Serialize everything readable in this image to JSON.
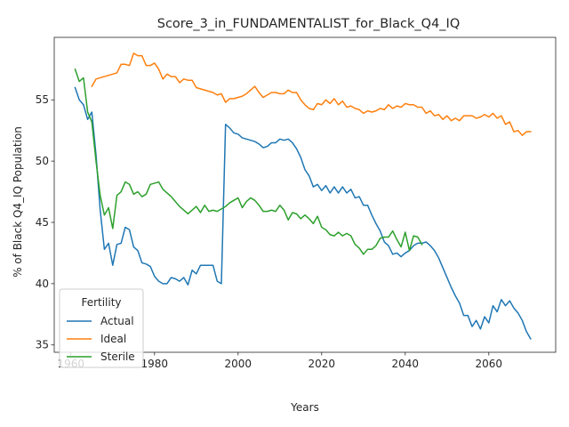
{
  "chart_data": {
    "type": "line",
    "title": "Score_3_in_FUNDAMENTALIST_for_Black_Q4_IQ",
    "xlabel": "Years",
    "ylabel": "% of Black Q4_IQ Population",
    "xlim": [
      1956,
      2076
    ],
    "ylim": [
      34.4,
      60.1
    ],
    "xticks": [
      1960,
      1980,
      2000,
      2020,
      2040,
      2060
    ],
    "yticks": [
      35,
      40,
      45,
      50,
      55
    ],
    "grid": false,
    "legend": {
      "title": "Fertility",
      "position": "lower-left"
    },
    "series": [
      {
        "name": "Actual",
        "color": "#1f77b4",
        "points": [
          [
            1961,
            56.0
          ],
          [
            1962,
            55.0
          ],
          [
            1963,
            54.6
          ],
          [
            1964,
            53.4
          ],
          [
            1965,
            54.0
          ],
          [
            1966,
            50.5
          ],
          [
            1967,
            46.0
          ],
          [
            1968,
            42.8
          ],
          [
            1969,
            43.3
          ],
          [
            1970,
            41.5
          ],
          [
            1971,
            43.2
          ],
          [
            1972,
            43.3
          ],
          [
            1973,
            44.6
          ],
          [
            1974,
            44.4
          ],
          [
            1975,
            43.0
          ],
          [
            1976,
            42.7
          ],
          [
            1977,
            41.7
          ],
          [
            1978,
            41.6
          ],
          [
            1979,
            41.4
          ],
          [
            1980,
            40.6
          ],
          [
            1981,
            40.2
          ],
          [
            1982,
            40.0
          ],
          [
            1983,
            40.0
          ],
          [
            1984,
            40.5
          ],
          [
            1985,
            40.4
          ],
          [
            1986,
            40.2
          ],
          [
            1987,
            40.5
          ],
          [
            1988,
            39.9
          ],
          [
            1989,
            41.1
          ],
          [
            1990,
            40.8
          ],
          [
            1991,
            41.5
          ],
          [
            1992,
            41.5
          ],
          [
            1993,
            41.5
          ],
          [
            1994,
            41.5
          ],
          [
            1995,
            40.2
          ],
          [
            1996,
            40.0
          ],
          [
            1997,
            53.0
          ],
          [
            1998,
            52.7
          ],
          [
            1999,
            52.3
          ],
          [
            2000,
            52.2
          ],
          [
            2001,
            51.9
          ],
          [
            2002,
            51.8
          ],
          [
            2003,
            51.7
          ],
          [
            2004,
            51.6
          ],
          [
            2005,
            51.4
          ],
          [
            2006,
            51.1
          ],
          [
            2007,
            51.2
          ],
          [
            2008,
            51.5
          ],
          [
            2009,
            51.5
          ],
          [
            2010,
            51.8
          ],
          [
            2011,
            51.7
          ],
          [
            2012,
            51.8
          ],
          [
            2013,
            51.5
          ],
          [
            2014,
            51.0
          ],
          [
            2015,
            50.3
          ],
          [
            2016,
            49.3
          ],
          [
            2017,
            48.8
          ],
          [
            2018,
            47.9
          ],
          [
            2019,
            48.1
          ],
          [
            2020,
            47.6
          ],
          [
            2021,
            48.0
          ],
          [
            2022,
            47.4
          ],
          [
            2023,
            47.9
          ],
          [
            2024,
            47.4
          ],
          [
            2025,
            47.9
          ],
          [
            2026,
            47.4
          ],
          [
            2027,
            47.7
          ],
          [
            2028,
            47.0
          ],
          [
            2029,
            47.1
          ],
          [
            2030,
            46.4
          ],
          [
            2031,
            46.4
          ],
          [
            2032,
            45.6
          ],
          [
            2033,
            44.9
          ],
          [
            2034,
            44.3
          ],
          [
            2035,
            43.4
          ],
          [
            2036,
            43.1
          ],
          [
            2037,
            42.4
          ],
          [
            2038,
            42.5
          ],
          [
            2039,
            42.2
          ],
          [
            2040,
            42.5
          ],
          [
            2041,
            42.7
          ],
          [
            2042,
            43.1
          ],
          [
            2043,
            43.3
          ],
          [
            2044,
            43.3
          ],
          [
            2045,
            43.4
          ],
          [
            2046,
            43.1
          ],
          [
            2047,
            42.7
          ],
          [
            2048,
            42.1
          ],
          [
            2049,
            41.3
          ],
          [
            2050,
            40.5
          ],
          [
            2051,
            39.7
          ],
          [
            2052,
            39.0
          ],
          [
            2053,
            38.4
          ],
          [
            2054,
            37.4
          ],
          [
            2055,
            37.4
          ],
          [
            2056,
            36.5
          ],
          [
            2057,
            37.0
          ],
          [
            2058,
            36.3
          ],
          [
            2059,
            37.3
          ],
          [
            2060,
            36.8
          ],
          [
            2061,
            38.2
          ],
          [
            2062,
            37.7
          ],
          [
            2063,
            38.7
          ],
          [
            2064,
            38.2
          ],
          [
            2065,
            38.6
          ],
          [
            2066,
            38.0
          ],
          [
            2067,
            37.6
          ],
          [
            2068,
            37.0
          ],
          [
            2069,
            36.1
          ],
          [
            2070,
            35.5
          ]
        ]
      },
      {
        "name": "Ideal",
        "color": "#ff7f0e",
        "points": [
          [
            1965,
            56.1
          ],
          [
            1966,
            56.7
          ],
          [
            1967,
            56.8
          ],
          [
            1968,
            56.9
          ],
          [
            1969,
            57.0
          ],
          [
            1970,
            57.1
          ],
          [
            1971,
            57.2
          ],
          [
            1972,
            57.9
          ],
          [
            1973,
            57.9
          ],
          [
            1974,
            57.8
          ],
          [
            1975,
            58.8
          ],
          [
            1976,
            58.6
          ],
          [
            1977,
            58.6
          ],
          [
            1978,
            57.8
          ],
          [
            1979,
            57.8
          ],
          [
            1980,
            58.0
          ],
          [
            1981,
            57.5
          ],
          [
            1982,
            56.7
          ],
          [
            1983,
            57.1
          ],
          [
            1984,
            56.9
          ],
          [
            1985,
            56.9
          ],
          [
            1986,
            56.4
          ],
          [
            1987,
            56.7
          ],
          [
            1988,
            56.6
          ],
          [
            1989,
            56.6
          ],
          [
            1990,
            56.0
          ],
          [
            1991,
            55.9
          ],
          [
            1992,
            55.8
          ],
          [
            1993,
            55.7
          ],
          [
            1994,
            55.6
          ],
          [
            1995,
            55.4
          ],
          [
            1996,
            55.5
          ],
          [
            1997,
            54.8
          ],
          [
            1998,
            55.1
          ],
          [
            1999,
            55.1
          ],
          [
            2000,
            55.2
          ],
          [
            2001,
            55.3
          ],
          [
            2002,
            55.5
          ],
          [
            2003,
            55.8
          ],
          [
            2004,
            56.1
          ],
          [
            2005,
            55.6
          ],
          [
            2006,
            55.2
          ],
          [
            2007,
            55.4
          ],
          [
            2008,
            55.6
          ],
          [
            2009,
            55.6
          ],
          [
            2010,
            55.5
          ],
          [
            2011,
            55.5
          ],
          [
            2012,
            55.8
          ],
          [
            2013,
            55.6
          ],
          [
            2014,
            55.6
          ],
          [
            2015,
            55.0
          ],
          [
            2016,
            54.6
          ],
          [
            2017,
            54.3
          ],
          [
            2018,
            54.2
          ],
          [
            2019,
            54.7
          ],
          [
            2020,
            54.6
          ],
          [
            2021,
            55.0
          ],
          [
            2022,
            54.7
          ],
          [
            2023,
            55.1
          ],
          [
            2024,
            54.6
          ],
          [
            2025,
            54.9
          ],
          [
            2026,
            54.4
          ],
          [
            2027,
            54.5
          ],
          [
            2028,
            54.3
          ],
          [
            2029,
            54.2
          ],
          [
            2030,
            53.9
          ],
          [
            2031,
            54.1
          ],
          [
            2032,
            54.0
          ],
          [
            2033,
            54.1
          ],
          [
            2034,
            54.3
          ],
          [
            2035,
            54.2
          ],
          [
            2036,
            54.6
          ],
          [
            2037,
            54.3
          ],
          [
            2038,
            54.5
          ],
          [
            2039,
            54.4
          ],
          [
            2040,
            54.7
          ],
          [
            2041,
            54.6
          ],
          [
            2042,
            54.6
          ],
          [
            2043,
            54.4
          ],
          [
            2044,
            54.4
          ],
          [
            2045,
            53.9
          ],
          [
            2046,
            54.1
          ],
          [
            2047,
            53.7
          ],
          [
            2048,
            53.8
          ],
          [
            2049,
            53.4
          ],
          [
            2050,
            53.7
          ],
          [
            2051,
            53.3
          ],
          [
            2052,
            53.5
          ],
          [
            2053,
            53.3
          ],
          [
            2054,
            53.7
          ],
          [
            2055,
            53.7
          ],
          [
            2056,
            53.7
          ],
          [
            2057,
            53.5
          ],
          [
            2058,
            53.6
          ],
          [
            2059,
            53.8
          ],
          [
            2060,
            53.6
          ],
          [
            2061,
            53.9
          ],
          [
            2062,
            53.5
          ],
          [
            2063,
            53.7
          ],
          [
            2064,
            53.0
          ],
          [
            2065,
            53.2
          ],
          [
            2066,
            52.4
          ],
          [
            2067,
            52.5
          ],
          [
            2068,
            52.1
          ],
          [
            2069,
            52.4
          ],
          [
            2070,
            52.4
          ]
        ]
      },
      {
        "name": "Sterile",
        "color": "#2ca02c",
        "points": [
          [
            1961,
            57.5
          ],
          [
            1962,
            56.5
          ],
          [
            1963,
            56.8
          ],
          [
            1964,
            54.0
          ],
          [
            1965,
            53.2
          ],
          [
            1966,
            50.0
          ],
          [
            1967,
            47.2
          ],
          [
            1968,
            45.6
          ],
          [
            1969,
            46.2
          ],
          [
            1970,
            44.5
          ],
          [
            1971,
            47.2
          ],
          [
            1972,
            47.5
          ],
          [
            1973,
            48.3
          ],
          [
            1974,
            48.1
          ],
          [
            1975,
            47.3
          ],
          [
            1976,
            47.5
          ],
          [
            1977,
            47.1
          ],
          [
            1978,
            47.3
          ],
          [
            1979,
            48.1
          ],
          [
            1980,
            48.2
          ],
          [
            1981,
            48.3
          ],
          [
            1982,
            47.7
          ],
          [
            1983,
            47.4
          ],
          [
            1984,
            47.1
          ],
          [
            1985,
            46.7
          ],
          [
            1986,
            46.3
          ],
          [
            1987,
            46.0
          ],
          [
            1988,
            45.7
          ],
          [
            1989,
            46.0
          ],
          [
            1990,
            46.3
          ],
          [
            1991,
            45.8
          ],
          [
            1992,
            46.4
          ],
          [
            1993,
            45.9
          ],
          [
            1994,
            46.0
          ],
          [
            1995,
            45.9
          ],
          [
            1996,
            46.1
          ],
          [
            1997,
            46.3
          ],
          [
            1998,
            46.6
          ],
          [
            1999,
            46.8
          ],
          [
            2000,
            47.0
          ],
          [
            2001,
            46.2
          ],
          [
            2002,
            46.7
          ],
          [
            2003,
            47.0
          ],
          [
            2004,
            46.8
          ],
          [
            2005,
            46.4
          ],
          [
            2006,
            45.9
          ],
          [
            2007,
            45.9
          ],
          [
            2008,
            46.0
          ],
          [
            2009,
            45.9
          ],
          [
            2010,
            46.4
          ],
          [
            2011,
            46.0
          ],
          [
            2012,
            45.2
          ],
          [
            2013,
            45.8
          ],
          [
            2014,
            45.7
          ],
          [
            2015,
            45.3
          ],
          [
            2016,
            45.6
          ],
          [
            2017,
            45.3
          ],
          [
            2018,
            44.9
          ],
          [
            2019,
            45.5
          ],
          [
            2020,
            44.6
          ],
          [
            2021,
            44.4
          ],
          [
            2022,
            44.0
          ],
          [
            2023,
            43.9
          ],
          [
            2024,
            44.2
          ],
          [
            2025,
            43.9
          ],
          [
            2026,
            44.1
          ],
          [
            2027,
            43.9
          ],
          [
            2028,
            43.2
          ],
          [
            2029,
            42.9
          ],
          [
            2030,
            42.4
          ],
          [
            2031,
            42.8
          ],
          [
            2032,
            42.8
          ],
          [
            2033,
            43.1
          ],
          [
            2034,
            43.7
          ],
          [
            2035,
            43.8
          ],
          [
            2036,
            43.8
          ],
          [
            2037,
            44.3
          ],
          [
            2038,
            43.6
          ],
          [
            2039,
            43.0
          ],
          [
            2040,
            44.2
          ],
          [
            2041,
            42.7
          ],
          [
            2042,
            43.9
          ],
          [
            2043,
            43.8
          ],
          [
            2044,
            43.2
          ]
        ]
      }
    ]
  }
}
